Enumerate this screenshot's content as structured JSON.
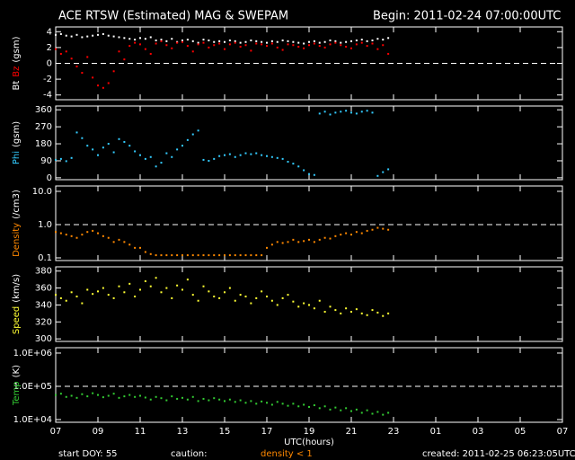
{
  "title": "ACE RTSW (Estimated) MAG & SWEPAM",
  "begin": "Begin: 2011-02-24 07:00:00UTC",
  "footer": {
    "start": "start DOY:  55",
    "caution": "caution:",
    "caution_note": "density < 1",
    "created": "created: 2011-02-25 06:23:05UTC"
  },
  "chart_data": [
    {
      "type": "scatter",
      "ylabel": [
        {
          "text": "Bt",
          "color": "#ffffff"
        },
        {
          "text": "Bz",
          "color": "#ff0000"
        },
        {
          "text": "(gsm)",
          "color": "#ffffff"
        }
      ],
      "xlim": [
        7,
        31
      ],
      "ylim": [
        -4.6,
        4.6
      ],
      "yticks": [
        -4,
        -2,
        0,
        2,
        4
      ],
      "hlines": [
        0
      ],
      "x": [
        7,
        7.25,
        7.5,
        7.75,
        8,
        8.25,
        8.5,
        8.75,
        9,
        9.25,
        9.5,
        9.75,
        10,
        10.25,
        10.5,
        10.75,
        11,
        11.25,
        11.5,
        11.75,
        12,
        12.25,
        12.5,
        12.75,
        13,
        13.25,
        13.5,
        13.75,
        14,
        14.25,
        14.5,
        14.75,
        15,
        15.25,
        15.5,
        15.75,
        16,
        16.25,
        16.5,
        16.75,
        17,
        17.25,
        17.5,
        17.75,
        18,
        18.25,
        18.5,
        18.75,
        19,
        19.25,
        19.5,
        19.75,
        20,
        20.25,
        20.5,
        20.75,
        21,
        21.25,
        21.5,
        21.75,
        22,
        22.25,
        22.5,
        22.75
      ],
      "series": [
        {
          "color": "#ffffff",
          "values": [
            3.6,
            3.7,
            3.5,
            3.4,
            3.6,
            3.3,
            3.4,
            3.5,
            3.6,
            3.7,
            3.5,
            3.4,
            3.3,
            3.2,
            3.1,
            3.0,
            3.2,
            3.1,
            3.3,
            2.9,
            3.0,
            2.8,
            3.1,
            2.7,
            2.9,
            3.0,
            2.8,
            2.6,
            3.0,
            2.9,
            2.7,
            2.8,
            2.7,
            2.9,
            2.8,
            2.6,
            2.7,
            2.9,
            2.8,
            2.7,
            2.6,
            2.8,
            2.7,
            2.9,
            2.8,
            2.7,
            2.6,
            2.5,
            2.7,
            2.8,
            2.6,
            2.7,
            2.9,
            2.8,
            2.6,
            2.7,
            2.8,
            2.9,
            3.0,
            2.8,
            2.9,
            3.1,
            3.0,
            3.2
          ]
        },
        {
          "color": "#ff0000",
          "values": [
            1.8,
            1.2,
            1.5,
            0.6,
            -0.4,
            -1.2,
            0.8,
            -1.8,
            -2.8,
            -3.1,
            -2.5,
            -1.0,
            1.5,
            0.5,
            2.2,
            2.6,
            2.4,
            1.8,
            1.2,
            2.5,
            2.8,
            2.3,
            1.9,
            2.6,
            2.7,
            2.2,
            1.5,
            2.4,
            2.6,
            2.0,
            2.3,
            2.5,
            1.8,
            2.4,
            2.6,
            2.1,
            2.3,
            1.6,
            2.5,
            2.4,
            2.2,
            2.5,
            2.0,
            1.7,
            2.4,
            2.3,
            2.1,
            1.9,
            2.3,
            2.5,
            2.2,
            2.0,
            2.4,
            2.6,
            2.3,
            2.1,
            1.9,
            2.4,
            2.6,
            2.2,
            2.5,
            1.8,
            2.3,
            1.2
          ]
        }
      ]
    },
    {
      "type": "scatter",
      "ylabel": [
        {
          "text": "Phi",
          "color": "#33ccff"
        },
        {
          "text": "(gsm)",
          "color": "#ffffff"
        }
      ],
      "xlim": [
        7,
        31
      ],
      "ylim": [
        -10,
        380
      ],
      "yticks": [
        0,
        90,
        180,
        270,
        360
      ],
      "x": [
        7,
        7.25,
        7.5,
        7.75,
        8,
        8.25,
        8.5,
        8.75,
        9,
        9.25,
        9.5,
        9.75,
        10,
        10.25,
        10.5,
        10.75,
        11,
        11.25,
        11.5,
        11.75,
        12,
        12.25,
        12.5,
        12.75,
        13,
        13.25,
        13.5,
        13.75,
        14,
        14.25,
        14.5,
        14.75,
        15,
        15.25,
        15.5,
        15.75,
        16,
        16.25,
        16.5,
        16.75,
        17,
        17.25,
        17.5,
        17.75,
        18,
        18.25,
        18.5,
        18.75,
        19,
        19.25,
        19.5,
        19.75,
        20,
        20.25,
        20.5,
        20.75,
        21,
        21.25,
        21.5,
        21.75,
        22,
        22.25,
        22.5,
        22.75
      ],
      "series": [
        {
          "color": "#33ccff",
          "values": [
            95,
            100,
            88,
            105,
            240,
            210,
            170,
            150,
            120,
            160,
            180,
            135,
            205,
            190,
            170,
            140,
            120,
            100,
            110,
            60,
            80,
            130,
            110,
            150,
            170,
            200,
            230,
            250,
            95,
            90,
            100,
            115,
            120,
            125,
            110,
            120,
            130,
            125,
            130,
            120,
            115,
            110,
            105,
            100,
            85,
            75,
            60,
            40,
            20,
            15,
            340,
            350,
            335,
            345,
            350,
            355,
            345,
            340,
            350,
            355,
            345,
            10,
            30,
            45
          ]
        }
      ]
    },
    {
      "type": "scatter",
      "log": true,
      "ylabel": [
        {
          "text": "Density",
          "color": "#ff8800"
        },
        {
          "text": "(/cm3)",
          "color": "#ffffff"
        }
      ],
      "xlim": [
        7,
        31
      ],
      "ylim": [
        0.083,
        14.5
      ],
      "yticks": [
        0.1,
        {
          "value": 1,
          "label": "1.0"
        },
        {
          "value": 10,
          "label": "10.0"
        }
      ],
      "hlines": [
        1
      ],
      "x": [
        7,
        7.25,
        7.5,
        7.75,
        8,
        8.25,
        8.5,
        8.75,
        9,
        9.25,
        9.5,
        9.75,
        10,
        10.25,
        10.5,
        10.75,
        11,
        11.25,
        11.5,
        11.75,
        12,
        12.25,
        12.5,
        12.75,
        13,
        13.25,
        13.5,
        13.75,
        14,
        14.25,
        14.5,
        14.75,
        15,
        15.25,
        15.5,
        15.75,
        16,
        16.25,
        16.5,
        16.75,
        17,
        17.25,
        17.5,
        17.75,
        18,
        18.25,
        18.5,
        18.75,
        19,
        19.25,
        19.5,
        19.75,
        20,
        20.25,
        20.5,
        20.75,
        21,
        21.25,
        21.5,
        21.75,
        22,
        22.25,
        22.5,
        22.75
      ],
      "series": [
        {
          "color": "#ff8800",
          "values": [
            0.6,
            0.55,
            0.5,
            0.45,
            0.4,
            0.5,
            0.6,
            0.65,
            0.55,
            0.45,
            0.4,
            0.3,
            0.35,
            0.3,
            0.25,
            0.2,
            0.2,
            0.15,
            0.13,
            0.12,
            0.12,
            0.12,
            0.12,
            0.12,
            0.12,
            0.12,
            0.12,
            0.12,
            0.12,
            0.12,
            0.12,
            0.12,
            0.12,
            0.12,
            0.12,
            0.12,
            0.12,
            0.12,
            0.12,
            0.12,
            0.2,
            0.25,
            0.3,
            0.28,
            0.3,
            0.35,
            0.3,
            0.32,
            0.35,
            0.3,
            0.35,
            0.4,
            0.38,
            0.45,
            0.5,
            0.55,
            0.5,
            0.6,
            0.55,
            0.65,
            0.7,
            0.8,
            0.75,
            0.7
          ]
        }
      ]
    },
    {
      "type": "scatter",
      "ylabel": [
        {
          "text": "Speed",
          "color": "#ffff33"
        },
        {
          "text": "(km/s)",
          "color": "#ffffff"
        }
      ],
      "xlim": [
        7,
        31
      ],
      "ylim": [
        297,
        385
      ],
      "yticks": [
        300,
        320,
        340,
        360,
        380
      ],
      "x": [
        7,
        7.25,
        7.5,
        7.75,
        8,
        8.25,
        8.5,
        8.75,
        9,
        9.25,
        9.5,
        9.75,
        10,
        10.25,
        10.5,
        10.75,
        11,
        11.25,
        11.5,
        11.75,
        12,
        12.25,
        12.5,
        12.75,
        13,
        13.25,
        13.5,
        13.75,
        14,
        14.25,
        14.5,
        14.75,
        15,
        15.25,
        15.5,
        15.75,
        16,
        16.25,
        16.5,
        16.75,
        17,
        17.25,
        17.5,
        17.75,
        18,
        18.25,
        18.5,
        18.75,
        19,
        19.25,
        19.5,
        19.75,
        20,
        20.25,
        20.5,
        20.75,
        21,
        21.25,
        21.5,
        21.75,
        22,
        22.25,
        22.5,
        22.75
      ],
      "series": [
        {
          "color": "#ffff33",
          "values": [
            352,
            348,
            345,
            355,
            350,
            342,
            358,
            353,
            356,
            360,
            352,
            348,
            362,
            355,
            365,
            350,
            358,
            368,
            362,
            372,
            355,
            360,
            348,
            363,
            358,
            370,
            352,
            345,
            362,
            356,
            350,
            348,
            355,
            360,
            345,
            352,
            350,
            342,
            348,
            356,
            350,
            345,
            340,
            348,
            352,
            344,
            338,
            342,
            340,
            336,
            345,
            332,
            338,
            334,
            330,
            336,
            332,
            335,
            330,
            328,
            334,
            331,
            327,
            330
          ]
        }
      ]
    },
    {
      "type": "scatter",
      "log": true,
      "ylabel": [
        {
          "text": "Temp",
          "color": "#33cc33"
        },
        {
          "text": "(K)",
          "color": "#ffffff"
        }
      ],
      "xlim": [
        7,
        31
      ],
      "ylim": [
        8300,
        1450000
      ],
      "yticks": [
        {
          "value": 10000,
          "label": "1.0E+04"
        },
        {
          "value": 100000,
          "label": "1.0E+05"
        },
        {
          "value": 1000000,
          "label": "1.0E+06"
        }
      ],
      "hlines": [
        100000
      ],
      "xlabel": "UTC(hours)",
      "xticks": [
        {
          "value": 7,
          "label": "07"
        },
        {
          "value": 9,
          "label": "09"
        },
        11,
        13,
        15,
        17,
        19,
        21,
        23,
        {
          "value": 25,
          "label": "01"
        },
        {
          "value": 27,
          "label": "03"
        },
        {
          "value": 29,
          "label": "05"
        },
        {
          "value": 31,
          "label": "07"
        }
      ],
      "x": [
        7,
        7.25,
        7.5,
        7.75,
        8,
        8.25,
        8.5,
        8.75,
        9,
        9.25,
        9.5,
        9.75,
        10,
        10.25,
        10.5,
        10.75,
        11,
        11.25,
        11.5,
        11.75,
        12,
        12.25,
        12.5,
        12.75,
        13,
        13.25,
        13.5,
        13.75,
        14,
        14.25,
        14.5,
        14.75,
        15,
        15.25,
        15.5,
        15.75,
        16,
        16.25,
        16.5,
        16.75,
        17,
        17.25,
        17.5,
        17.75,
        18,
        18.25,
        18.5,
        18.75,
        19,
        19.25,
        19.5,
        19.75,
        20,
        20.25,
        20.5,
        20.75,
        21,
        21.25,
        21.5,
        21.75,
        22,
        22.25,
        22.5,
        22.75
      ],
      "series": [
        {
          "color": "#33cc33",
          "values": [
            55000,
            60000,
            48000,
            52000,
            45000,
            58000,
            50000,
            62000,
            55000,
            47000,
            52000,
            60000,
            45000,
            50000,
            55000,
            48000,
            52000,
            46000,
            40000,
            48000,
            44000,
            38000,
            50000,
            42000,
            45000,
            40000,
            48000,
            36000,
            42000,
            38000,
            44000,
            40000,
            36000,
            40000,
            34000,
            38000,
            32000,
            36000,
            30000,
            35000,
            32000,
            28000,
            34000,
            30000,
            26000,
            30000,
            25000,
            28000,
            24000,
            27000,
            22000,
            25000,
            20000,
            23000,
            19000,
            22000,
            18000,
            20000,
            16000,
            19000,
            15000,
            17000,
            14000,
            16000
          ]
        }
      ]
    }
  ]
}
